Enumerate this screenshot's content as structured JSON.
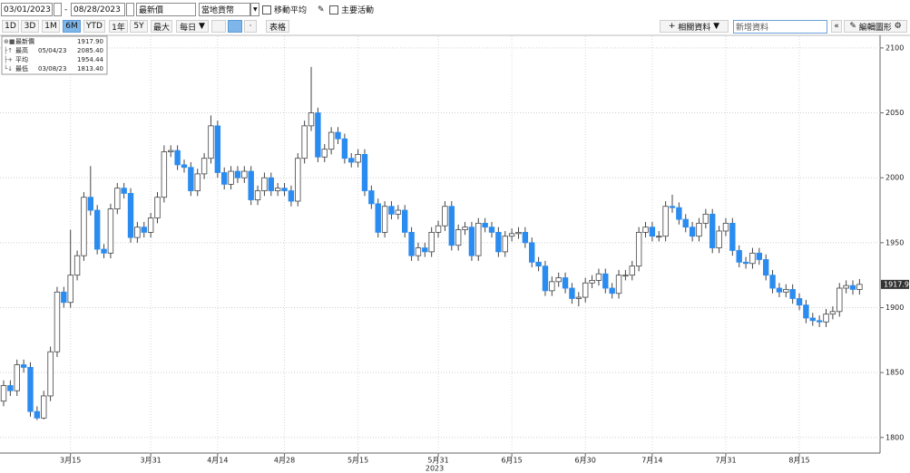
{
  "toolbar": {
    "start_date": "03/01/2023",
    "end_date": "08/28/2023",
    "field": "最新價",
    "currency": "當地貨幣",
    "moving_average": "移動平均",
    "events": "主要活動",
    "periods": [
      "1D",
      "3D",
      "1M",
      "6M",
      "YTD",
      "1年",
      "5Y",
      "最大"
    ],
    "frequency": "每日",
    "table": "表格",
    "related": "相關資料",
    "add_data": "新增資料",
    "edit_chart": "編輯圖形"
  },
  "chart_data": {
    "type": "candlestick",
    "stats": [
      {
        "name": "最新價",
        "date": null,
        "value": "1917.90"
      },
      {
        "name": "最高",
        "date": "05/04/23",
        "value": "2085.40"
      },
      {
        "name": "平均",
        "date": null,
        "value": "1954.44"
      },
      {
        "name": "最低",
        "date": "03/08/23",
        "value": "1813.40"
      }
    ],
    "categories": [
      null,
      null,
      null,
      null,
      null,
      null,
      null,
      null,
      null,
      null,
      "3月15",
      null,
      null,
      null,
      null,
      null,
      null,
      null,
      null,
      null,
      null,
      null,
      "3月31",
      null,
      null,
      null,
      null,
      null,
      null,
      null,
      null,
      null,
      "4月14",
      null,
      null,
      null,
      null,
      null,
      null,
      null,
      null,
      null,
      "4月28",
      null,
      null,
      null,
      null,
      null,
      null,
      null,
      null,
      null,
      null,
      "5月15",
      null,
      null,
      null,
      null,
      null,
      null,
      null,
      null,
      null,
      null,
      null,
      "5月31",
      null,
      null,
      null,
      null,
      null,
      null,
      null,
      null,
      null,
      null,
      "6月15",
      null,
      null,
      null,
      null,
      null,
      null,
      null,
      null,
      null,
      null,
      "6月30",
      null,
      null,
      null,
      null,
      null,
      null,
      null,
      null,
      null,
      "7月14",
      null,
      null,
      null,
      null,
      null,
      null,
      null,
      null,
      null,
      null,
      "7月31",
      null,
      null,
      null,
      null,
      null,
      null,
      null,
      null,
      null,
      null,
      "8月15",
      null,
      null,
      null,
      null,
      null,
      null,
      null,
      null,
      null
    ],
    "x_year_label": "2023",
    "open": [
      1828,
      1840,
      1836,
      1856,
      1854,
      1820,
      1815,
      1832,
      1866,
      1912,
      1904,
      1925,
      1940,
      1985,
      1975,
      1945,
      1942,
      1976,
      1992,
      1988,
      1954,
      1962,
      1958,
      1969,
      1985,
      2020,
      2021,
      2010,
      2008,
      1990,
      2003,
      2015,
      2040,
      2004,
      1995,
      2005,
      2000,
      2005,
      1983,
      1990,
      2000,
      1990,
      1992,
      1990,
      1982,
      2015,
      2040,
      2050,
      2016,
      2022,
      2035,
      2030,
      2015,
      2012,
      2018,
      1990,
      1980,
      1958,
      1978,
      1972,
      1975,
      1958,
      1940,
      1946,
      1943,
      1958,
      1963,
      1978,
      1948,
      1960,
      1962,
      1940,
      1965,
      1962,
      1958,
      1943,
      1955,
      1957,
      1958,
      1950,
      1935,
      1932,
      1913,
      1920,
      1923,
      1915,
      1907,
      1908,
      1919,
      1921,
      1926,
      1915,
      1911,
      1925,
      1925,
      1932,
      1958,
      1962,
      1955,
      1955,
      1978,
      1977,
      1968,
      1962,
      1955,
      1965,
      1972,
      1946,
      1959,
      1965,
      1944,
      1935,
      1934,
      1942,
      1937,
      1925,
      1915,
      1912,
      1914,
      1907,
      1902,
      1892,
      1890,
      1889,
      1895,
      1897,
      1915,
      1917,
      1914
    ],
    "high": [
      1844,
      1844,
      1860,
      1860,
      1858,
      1824,
      1836,
      1870,
      1916,
      1916,
      1960,
      1944,
      1989,
      2009,
      1979,
      1949,
      1980,
      1996,
      1996,
      1992,
      1966,
      1966,
      1973,
      1989,
      2025,
      2025,
      2025,
      2014,
      2012,
      2007,
      2019,
      2048,
      2044,
      2008,
      2009,
      2009,
      2009,
      2009,
      1994,
      2004,
      2004,
      1996,
      1996,
      1994,
      2019,
      2044,
      2085.4,
      2054,
      2026,
      2039,
      2039,
      2034,
      2019,
      2022,
      2022,
      1994,
      1984,
      1982,
      1982,
      1979,
      1979,
      1962,
      1950,
      1950,
      1962,
      1967,
      1982,
      1982,
      1964,
      1966,
      1966,
      1969,
      1969,
      1966,
      1962,
      1959,
      1961,
      1962,
      1962,
      1954,
      1939,
      1936,
      1924,
      1927,
      1927,
      1919,
      1912,
      1923,
      1925,
      1930,
      1930,
      1919,
      1929,
      1929,
      1936,
      1962,
      1966,
      1966,
      1959,
      1982,
      1987,
      1981,
      1972,
      1966,
      1969,
      1976,
      1976,
      1963,
      1969,
      1969,
      1948,
      1939,
      1946,
      1946,
      1941,
      1929,
      1919,
      1918,
      1918,
      1911,
      1906,
      1896,
      1894,
      1899,
      1901,
      1919,
      1921,
      1921,
      1922
    ],
    "low": [
      1824,
      1832,
      1832,
      1850,
      1816,
      1813.4,
      1814,
      1828,
      1862,
      1900,
      1900,
      1921,
      1936,
      1971,
      1941,
      1938,
      1938,
      1972,
      1984,
      1950,
      1950,
      1954,
      1954,
      1965,
      1981,
      2016,
      2006,
      2004,
      1986,
      1986,
      1999,
      2011,
      2000,
      1991,
      1991,
      1996,
      1996,
      1979,
      1979,
      1986,
      1986,
      1986,
      1986,
      1978,
      1978,
      2011,
      2036,
      2012,
      2012,
      2018,
      2026,
      2011,
      2008,
      2008,
      1986,
      1976,
      1954,
      1954,
      1968,
      1968,
      1954,
      1936,
      1936,
      1939,
      1939,
      1954,
      1959,
      1944,
      1944,
      1956,
      1936,
      1936,
      1958,
      1954,
      1939,
      1939,
      1951,
      1953,
      1946,
      1931,
      1928,
      1909,
      1909,
      1916,
      1911,
      1903,
      1901,
      1904,
      1915,
      1917,
      1911,
      1907,
      1907,
      1921,
      1921,
      1928,
      1954,
      1951,
      1951,
      1951,
      1973,
      1964,
      1958,
      1951,
      1951,
      1961,
      1942,
      1942,
      1955,
      1940,
      1931,
      1930,
      1930,
      1933,
      1921,
      1911,
      1908,
      1908,
      1903,
      1898,
      1888,
      1886,
      1885,
      1885,
      1891,
      1893,
      1911,
      1910,
      1910
    ],
    "close": [
      1840,
      1836,
      1856,
      1854,
      1820,
      1815,
      1832,
      1866,
      1912,
      1904,
      1925,
      1940,
      1985,
      1975,
      1945,
      1942,
      1976,
      1992,
      1988,
      1954,
      1962,
      1958,
      1969,
      1985,
      2020,
      2021,
      2010,
      2008,
      1990,
      2003,
      2015,
      2040,
      2004,
      1995,
      2005,
      2000,
      2005,
      1983,
      1990,
      2000,
      1990,
      1992,
      1990,
      1982,
      2015,
      2040,
      2050,
      2016,
      2022,
      2035,
      2030,
      2015,
      2012,
      2018,
      1990,
      1980,
      1958,
      1978,
      1972,
      1975,
      1958,
      1940,
      1946,
      1943,
      1958,
      1963,
      1978,
      1948,
      1960,
      1962,
      1940,
      1965,
      1962,
      1958,
      1943,
      1955,
      1957,
      1958,
      1950,
      1935,
      1932,
      1913,
      1920,
      1923,
      1915,
      1907,
      1908,
      1919,
      1921,
      1926,
      1915,
      1911,
      1925,
      1925,
      1932,
      1958,
      1962,
      1955,
      1955,
      1978,
      1977,
      1968,
      1962,
      1955,
      1965,
      1972,
      1946,
      1959,
      1965,
      1944,
      1935,
      1934,
      1942,
      1937,
      1925,
      1915,
      1912,
      1914,
      1907,
      1902,
      1892,
      1890,
      1889,
      1895,
      1897,
      1915,
      1917,
      1914,
      1917.9
    ],
    "up_color": "#ffffff",
    "down_color": "#2a8cf0",
    "ylim": [
      1788,
      2109
    ],
    "yticks": [
      1800,
      1850,
      1900,
      1950,
      2000,
      2050,
      2100
    ],
    "grid": true
  }
}
